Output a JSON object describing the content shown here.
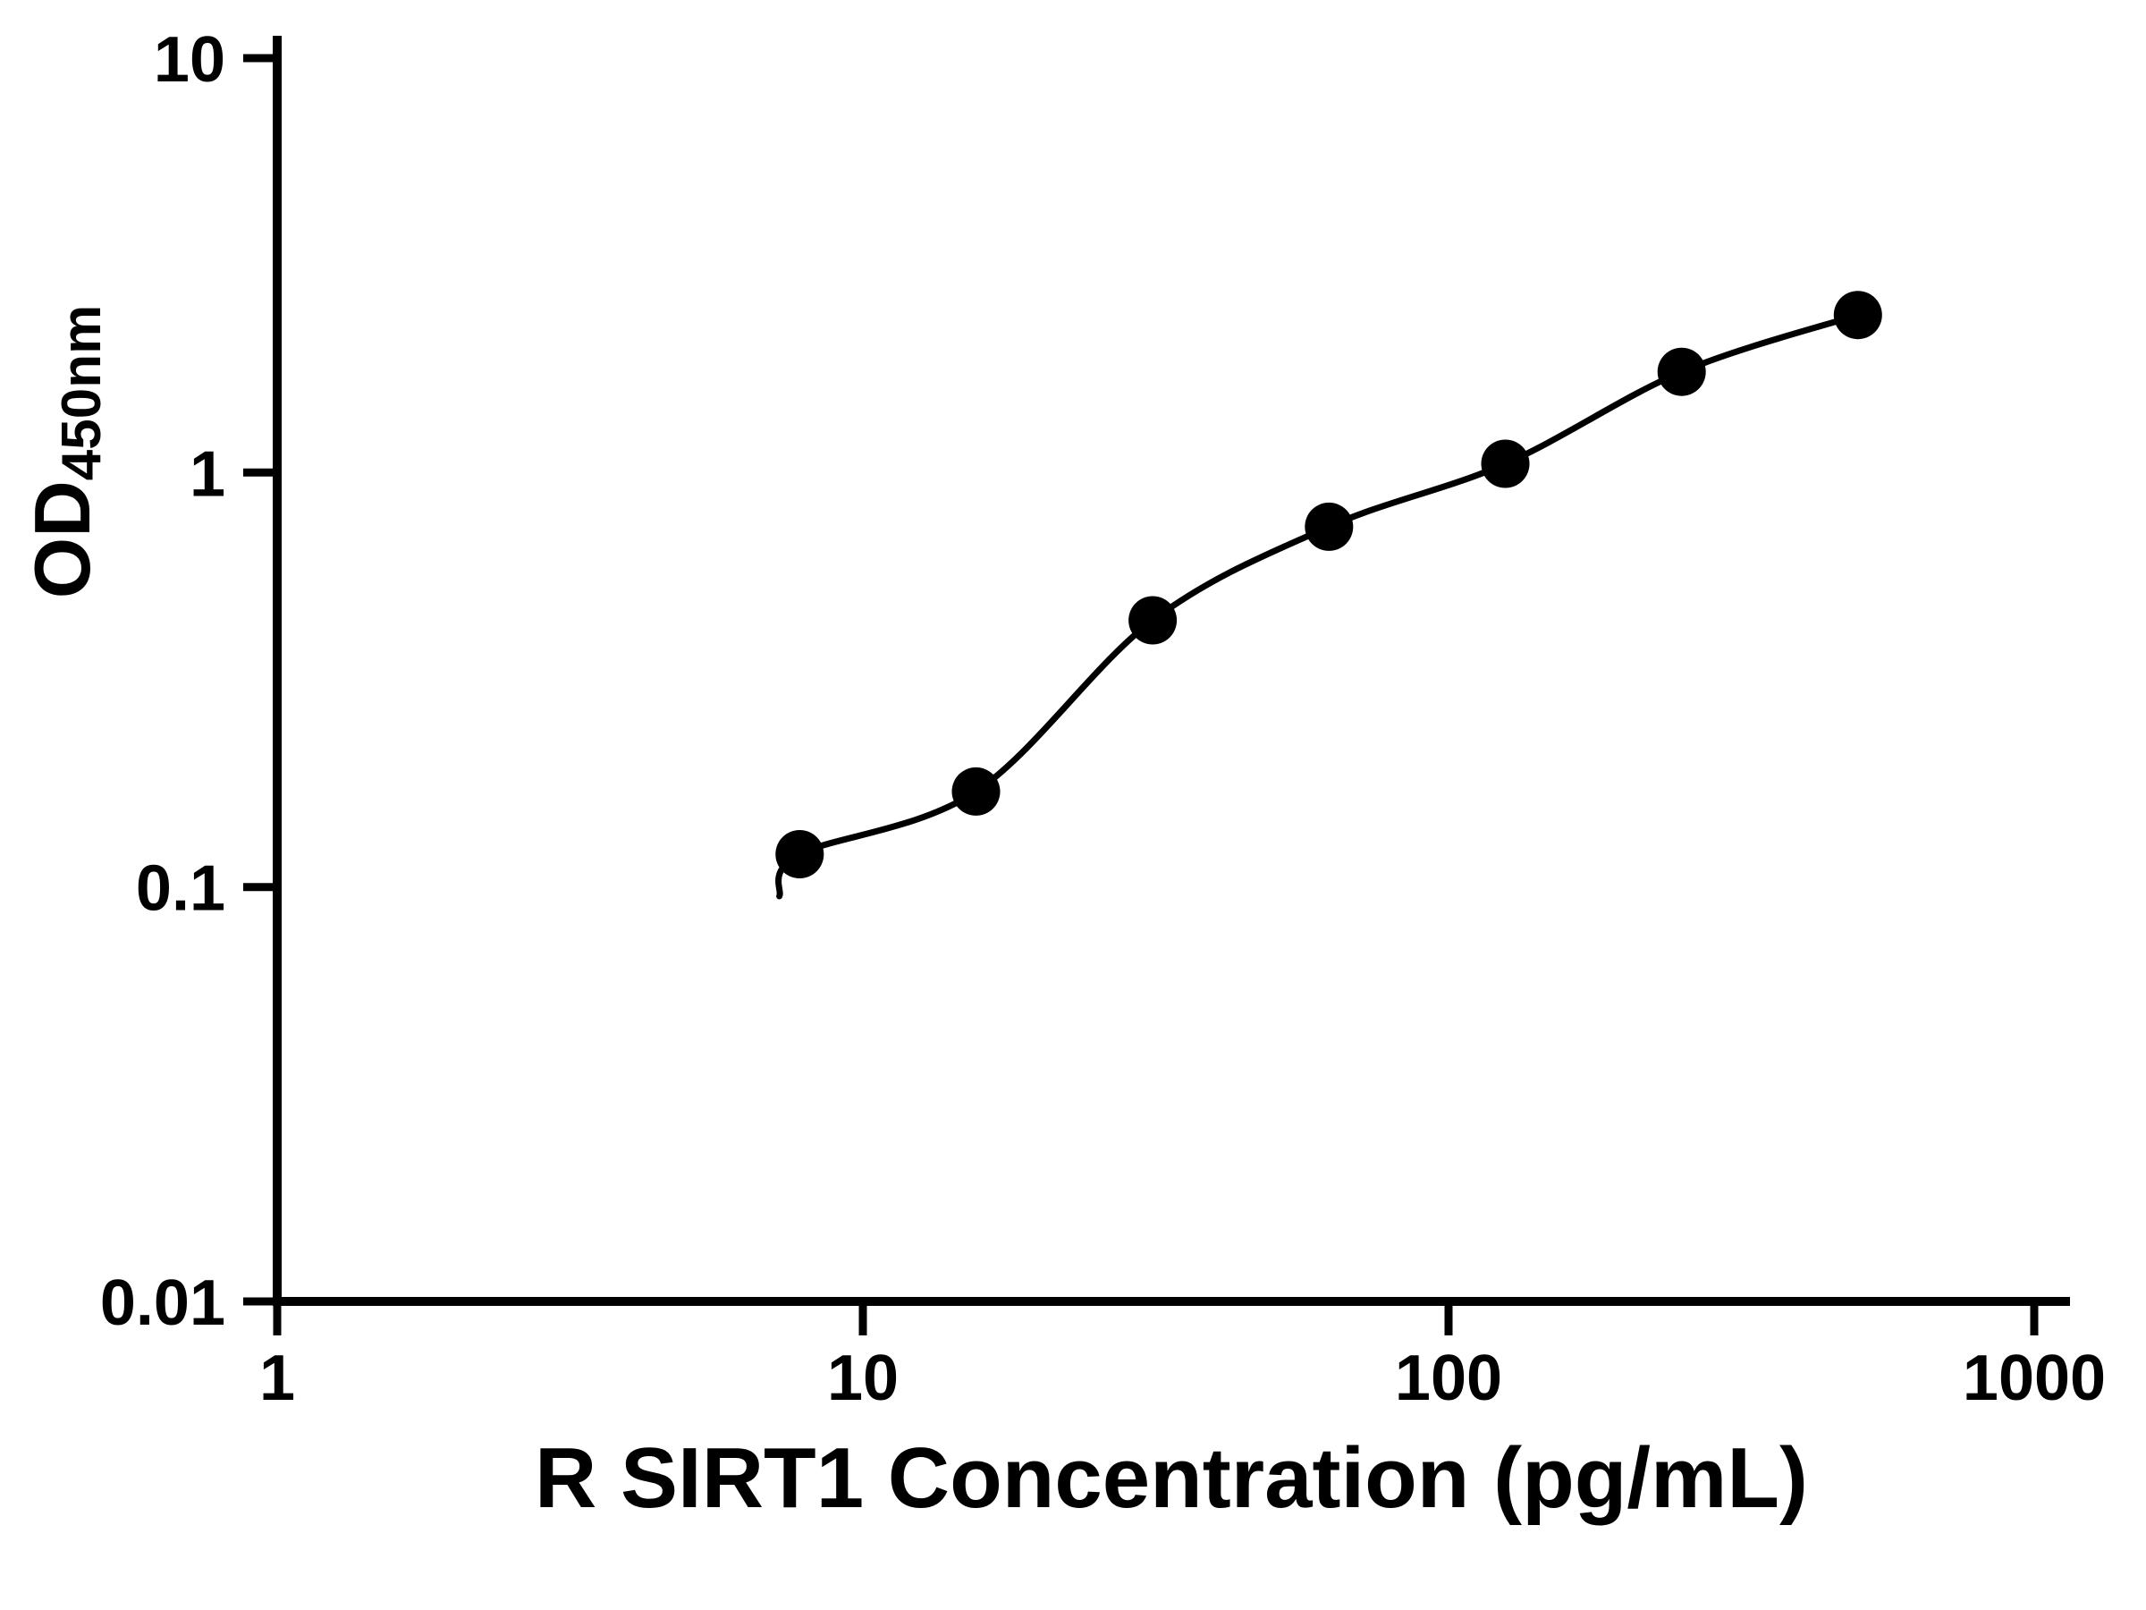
{
  "chart_data": {
    "type": "scatter",
    "title": "",
    "xlabel": "R SIRT1 Concentration (pg/mL)",
    "ylabel_main": "OD",
    "ylabel_sub": "450nm",
    "x_scale": "log",
    "y_scale": "log",
    "xlim": [
      1,
      1000
    ],
    "ylim": [
      0.01,
      10
    ],
    "x_ticks": [
      {
        "value": 1,
        "label": "1"
      },
      {
        "value": 10,
        "label": "10"
      },
      {
        "value": 100,
        "label": "100"
      },
      {
        "value": 1000,
        "label": "1000"
      }
    ],
    "y_ticks": [
      {
        "value": 0.01,
        "label": "0.01"
      },
      {
        "value": 0.1,
        "label": "0.1"
      },
      {
        "value": 1,
        "label": "1"
      },
      {
        "value": 10,
        "label": "10"
      }
    ],
    "points": [
      {
        "x": 7.8,
        "y": 0.12
      },
      {
        "x": 15.6,
        "y": 0.17
      },
      {
        "x": 31.25,
        "y": 0.44
      },
      {
        "x": 62.5,
        "y": 0.74
      },
      {
        "x": 125,
        "y": 1.05
      },
      {
        "x": 250,
        "y": 1.75
      },
      {
        "x": 500,
        "y": 2.4
      }
    ],
    "curve_start": {
      "x": 7.2,
      "y": 0.095
    },
    "fit": "smooth standard curve through points",
    "marker": "filled-circle",
    "marker_color": "#000000",
    "line_color": "#000000",
    "axis_color": "#000000",
    "background_color": "#ffffff",
    "grid": "off",
    "legend": "none"
  }
}
